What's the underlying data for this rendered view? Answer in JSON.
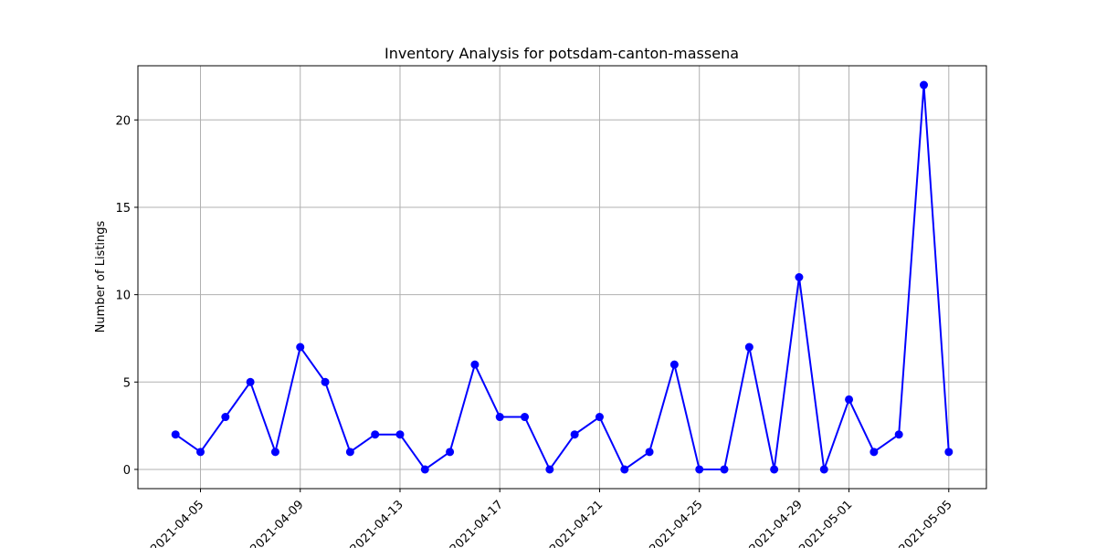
{
  "chart_data": {
    "type": "line",
    "title": "Inventory Analysis for potsdam-canton-massena",
    "xlabel": "",
    "ylabel": "Number of Listings",
    "x": [
      "2021-04-04",
      "2021-04-05",
      "2021-04-06",
      "2021-04-07",
      "2021-04-08",
      "2021-04-09",
      "2021-04-10",
      "2021-04-11",
      "2021-04-12",
      "2021-04-13",
      "2021-04-14",
      "2021-04-15",
      "2021-04-16",
      "2021-04-17",
      "2021-04-18",
      "2021-04-19",
      "2021-04-20",
      "2021-04-21",
      "2021-04-22",
      "2021-04-23",
      "2021-04-24",
      "2021-04-25",
      "2021-04-26",
      "2021-04-27",
      "2021-04-28",
      "2021-04-29",
      "2021-04-30",
      "2021-05-01",
      "2021-05-02",
      "2021-05-03",
      "2021-05-04",
      "2021-05-05"
    ],
    "values": [
      2,
      1,
      3,
      5,
      1,
      7,
      5,
      1,
      2,
      2,
      0,
      1,
      6,
      3,
      3,
      0,
      2,
      3,
      0,
      1,
      6,
      0,
      0,
      7,
      0,
      11,
      0,
      4,
      1,
      2,
      22,
      1
    ],
    "xticks": [
      "2021-04-05",
      "2021-04-09",
      "2021-04-13",
      "2021-04-17",
      "2021-04-21",
      "2021-04-25",
      "2021-04-29",
      "2021-05-01",
      "2021-05-05"
    ],
    "yticks": [
      0,
      5,
      10,
      15,
      20
    ],
    "xlim": [
      "2021-04-02T11:48:00",
      "2021-05-06T12:12:00"
    ],
    "ylim": [
      -1.1,
      23.1
    ],
    "grid": true,
    "line_color": "#0000ff",
    "marker": "circle"
  }
}
